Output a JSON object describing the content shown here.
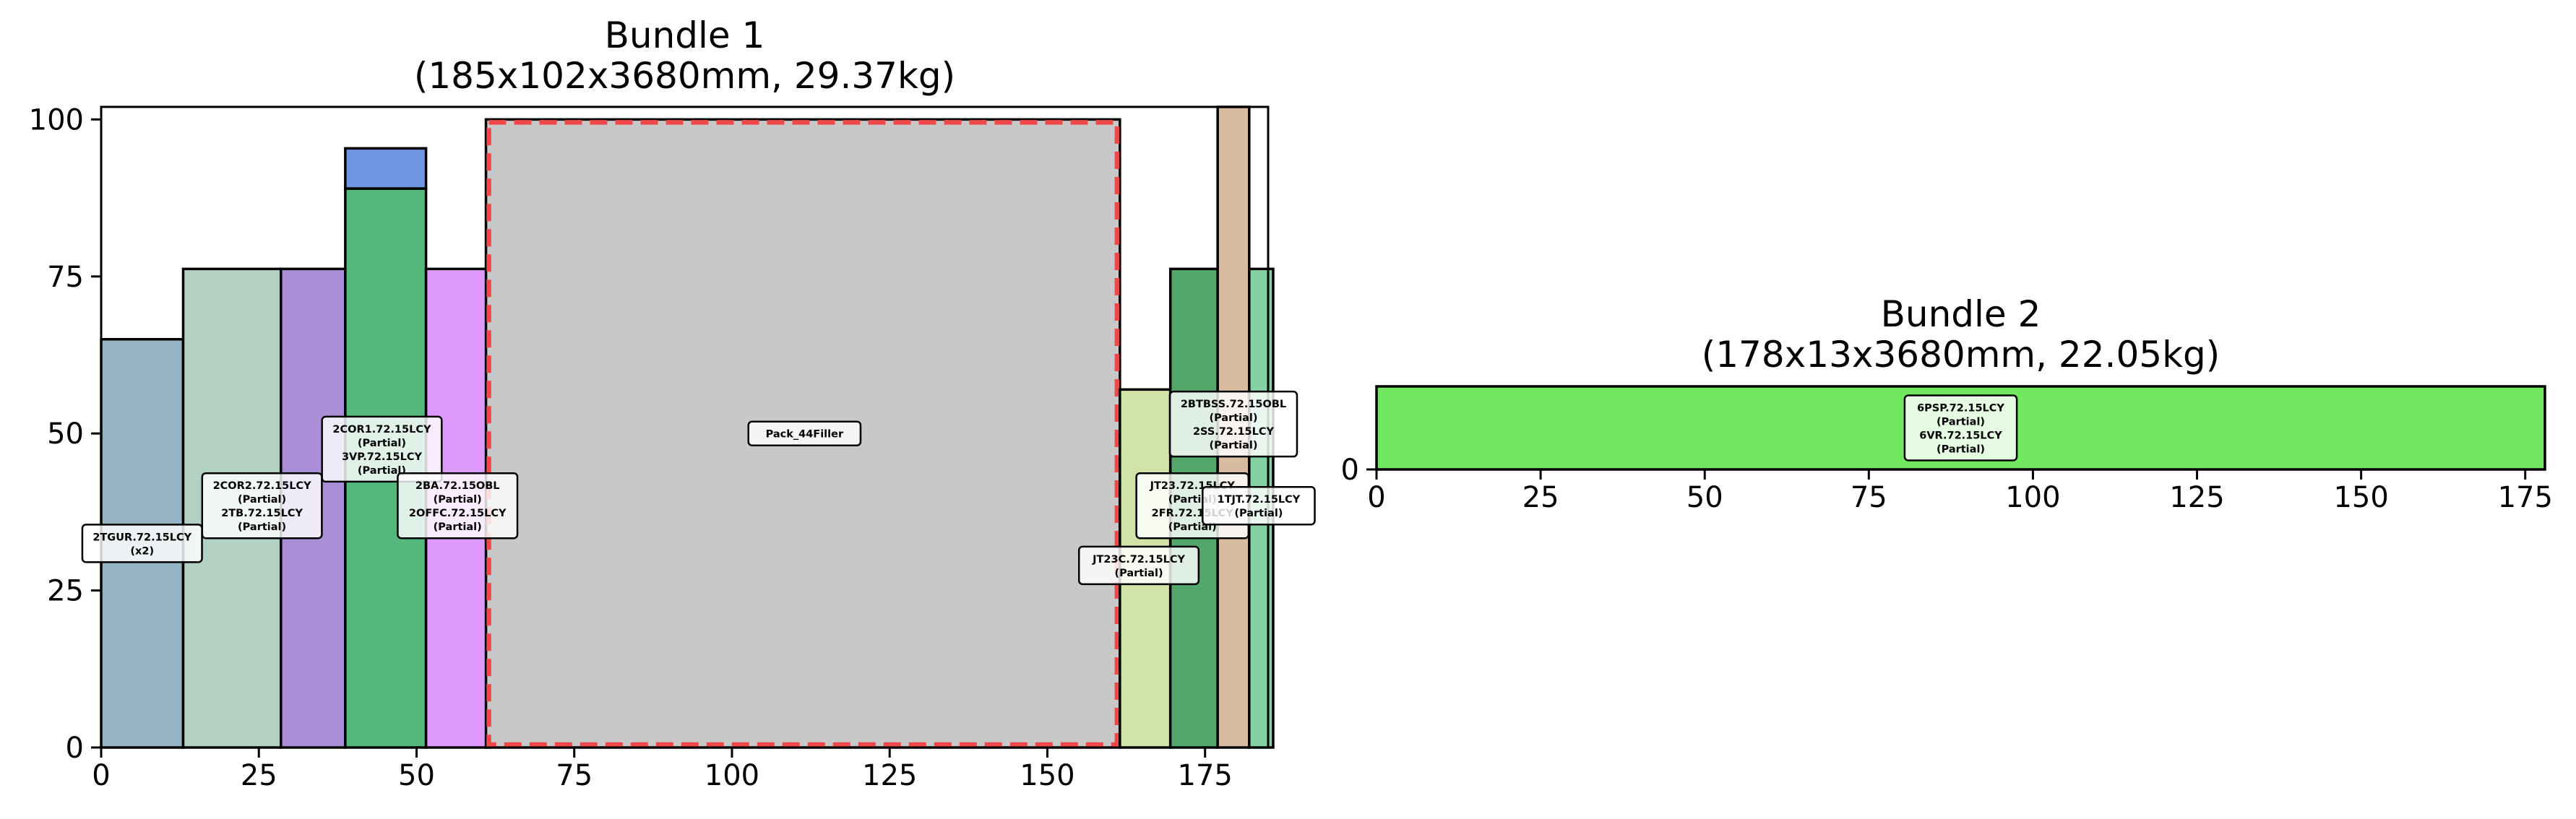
{
  "chart_data": [
    {
      "type": "bar",
      "title": "Bundle 1",
      "subtitle": "(185x102x3680mm, 29.37kg)",
      "xlabel": "",
      "ylabel": "",
      "xlim": [
        0,
        185
      ],
      "ylim": [
        0,
        102
      ],
      "xticks": [
        0,
        25,
        50,
        75,
        100,
        125,
        150,
        175
      ],
      "yticks": [
        0,
        25,
        50,
        75,
        100
      ],
      "bars": [
        {
          "x": 0,
          "width": 13,
          "y": 0,
          "height": 65,
          "color": "#95b5c4"
        },
        {
          "x": 13,
          "width": 15.5,
          "y": 0,
          "height": 76.2,
          "color": "#b2d1c2"
        },
        {
          "x": 28.5,
          "width": 10.2,
          "y": 0,
          "height": 76.2,
          "color": "#ab8fd6"
        },
        {
          "x": 38.7,
          "width": 12.8,
          "y": 0,
          "height": 89,
          "color": "#55b87c"
        },
        {
          "x": 38.7,
          "width": 12.8,
          "y": 89,
          "height": 6.4,
          "color": "#6f94e0"
        },
        {
          "x": 51.5,
          "width": 10,
          "y": 0,
          "height": 76.2,
          "color": "#dc98fa"
        },
        {
          "x": 61,
          "width": 100.5,
          "y": 0,
          "height": 100,
          "color": "#c8c8c8",
          "highlight": true
        },
        {
          "x": 161.5,
          "width": 8,
          "y": 0,
          "height": 57,
          "color": "#d1e3a6"
        },
        {
          "x": 169.5,
          "width": 7.5,
          "y": 0,
          "height": 76.2,
          "color": "#53a76b"
        },
        {
          "x": 177,
          "width": 5,
          "y": 0,
          "height": 102,
          "color": "#d8bca0"
        },
        {
          "x": 182,
          "width": 3.8,
          "y": 0,
          "height": 76.2,
          "color": "#84d1a1"
        }
      ],
      "labels": [
        {
          "x": 6.5,
          "y": 32.5,
          "lines": [
            "2TGUR.72.15LCY",
            "(x2)"
          ]
        },
        {
          "x": 25.5,
          "y": 38.5,
          "lines": [
            "2COR2.72.15LCY",
            "(Partial)",
            "2TB.72.15LCY",
            "(Partial)"
          ]
        },
        {
          "x": 44.5,
          "y": 47.5,
          "lines": [
            "2COR1.72.15LCY",
            "(Partial)",
            "3VP.72.15LCY",
            "(Partial)"
          ]
        },
        {
          "x": 56.5,
          "y": 38.5,
          "lines": [
            "2BA.72.15OBL",
            "(Partial)",
            "2OFFC.72.15LCY",
            "(Partial)"
          ]
        },
        {
          "x": 111.5,
          "y": 50,
          "lines": [
            "Pack_44Filler"
          ]
        },
        {
          "x": 164.5,
          "y": 29,
          "lines": [
            "JT23C.72.15LCY",
            "(Partial)"
          ]
        },
        {
          "x": 173,
          "y": 38.5,
          "lines": [
            "JT23.72.15LCY",
            "(Partial)",
            "2FR.72.15LCY",
            "(Partial)"
          ]
        },
        {
          "x": 179.5,
          "y": 51.5,
          "lines": [
            "2BTBSS.72.15OBL",
            "(Partial)",
            "2SS.72.15LCY",
            "(Partial)"
          ]
        },
        {
          "x": 183.5,
          "y": 38.5,
          "lines": [
            "1TJT.72.15LCY",
            "(Partial)"
          ]
        }
      ]
    },
    {
      "type": "bar",
      "title": "Bundle 2",
      "subtitle": "(178x13x3680mm, 22.05kg)",
      "xlabel": "",
      "ylabel": "",
      "xlim": [
        0,
        178
      ],
      "ylim": [
        0,
        13
      ],
      "xticks": [
        0,
        25,
        50,
        75,
        100,
        125,
        150,
        175
      ],
      "yticks": [
        0
      ],
      "bars": [
        {
          "x": 0,
          "width": 178,
          "y": 0,
          "height": 13,
          "color": "#71e85f"
        }
      ],
      "labels": [
        {
          "x": 89,
          "y": 6.5,
          "lines": [
            "6PSP.72.15LCY",
            "(Partial)",
            "6VR.72.15LCY",
            "(Partial)"
          ]
        }
      ]
    }
  ]
}
